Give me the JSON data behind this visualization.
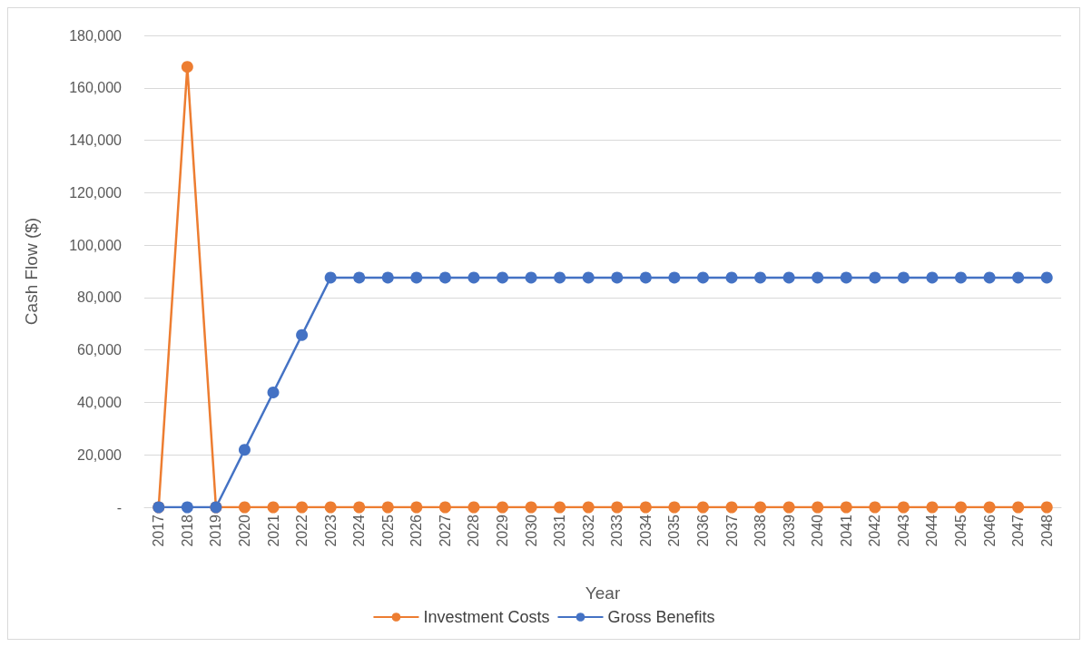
{
  "chart_data": {
    "type": "line",
    "xlabel": "Year",
    "ylabel": "Cash Flow ($)",
    "categories": [
      "2017",
      "2018",
      "2019",
      "2020",
      "2021",
      "2022",
      "2023",
      "2024",
      "2025",
      "2026",
      "2027",
      "2028",
      "2029",
      "2030",
      "2031",
      "2032",
      "2033",
      "2034",
      "2035",
      "2036",
      "2037",
      "2038",
      "2039",
      "2040",
      "2041",
      "2042",
      "2043",
      "2044",
      "2045",
      "2046",
      "2047",
      "2048"
    ],
    "series": [
      {
        "name": "Investment Costs",
        "color": "#ed7d31",
        "values": [
          0,
          168000,
          0,
          0,
          0,
          0,
          0,
          0,
          0,
          0,
          0,
          0,
          0,
          0,
          0,
          0,
          0,
          0,
          0,
          0,
          0,
          0,
          0,
          0,
          0,
          0,
          0,
          0,
          0,
          0,
          0,
          0
        ]
      },
      {
        "name": "Gross Benefits",
        "color": "#4472c4",
        "values": [
          0,
          0,
          0,
          21900,
          43800,
          65700,
          87600,
          87600,
          87600,
          87600,
          87600,
          87600,
          87600,
          87600,
          87600,
          87600,
          87600,
          87600,
          87600,
          87600,
          87600,
          87600,
          87600,
          87600,
          87600,
          87600,
          87600,
          87600,
          87600,
          87600,
          87600,
          87600
        ]
      }
    ],
    "ylim": [
      0,
      180000
    ],
    "yticks": [
      {
        "value": 0,
        "label": "-"
      },
      {
        "value": 20000,
        "label": "20,000"
      },
      {
        "value": 40000,
        "label": "40,000"
      },
      {
        "value": 60000,
        "label": "60,000"
      },
      {
        "value": 80000,
        "label": "80,000"
      },
      {
        "value": 100000,
        "label": "100,000"
      },
      {
        "value": 120000,
        "label": "120,000"
      },
      {
        "value": 140000,
        "label": "140,000"
      },
      {
        "value": 160000,
        "label": "160,000"
      },
      {
        "value": 180000,
        "label": "180,000"
      }
    ],
    "grid": "y",
    "legend": "bottom",
    "marker": "circle",
    "line_style": "solid"
  }
}
